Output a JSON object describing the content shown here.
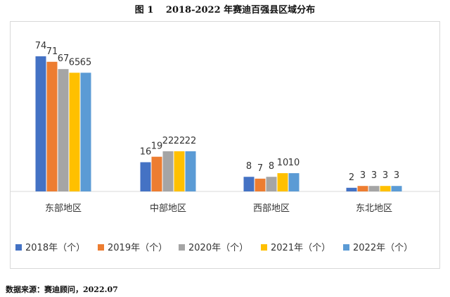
{
  "figure": {
    "title": "图 1　 2018-2022 年赛迪百强县区域分布",
    "source": "数据来源：赛迪顾问，2022.07"
  },
  "chart_data": {
    "type": "bar",
    "categories": [
      "东部地区",
      "中部地区",
      "西部地区",
      "东北地区"
    ],
    "series": [
      {
        "name": "2018年（个）",
        "values": [
          74,
          16,
          8,
          2
        ],
        "color": "#4472C4"
      },
      {
        "name": "2019年（个）",
        "values": [
          71,
          19,
          7,
          3
        ],
        "color": "#ED7D31"
      },
      {
        "name": "2020年（个）",
        "values": [
          67,
          22,
          8,
          3
        ],
        "color": "#A5A5A5"
      },
      {
        "name": "2021年（个）",
        "values": [
          65,
          22,
          10,
          3
        ],
        "color": "#FFC000"
      },
      {
        "name": "2022年（个）",
        "values": [
          65,
          22,
          10,
          3
        ],
        "color": "#5B9BD5"
      }
    ],
    "ylim": [
      0,
      80
    ],
    "grid": false,
    "legend_position": "bottom",
    "data_labels": true
  }
}
